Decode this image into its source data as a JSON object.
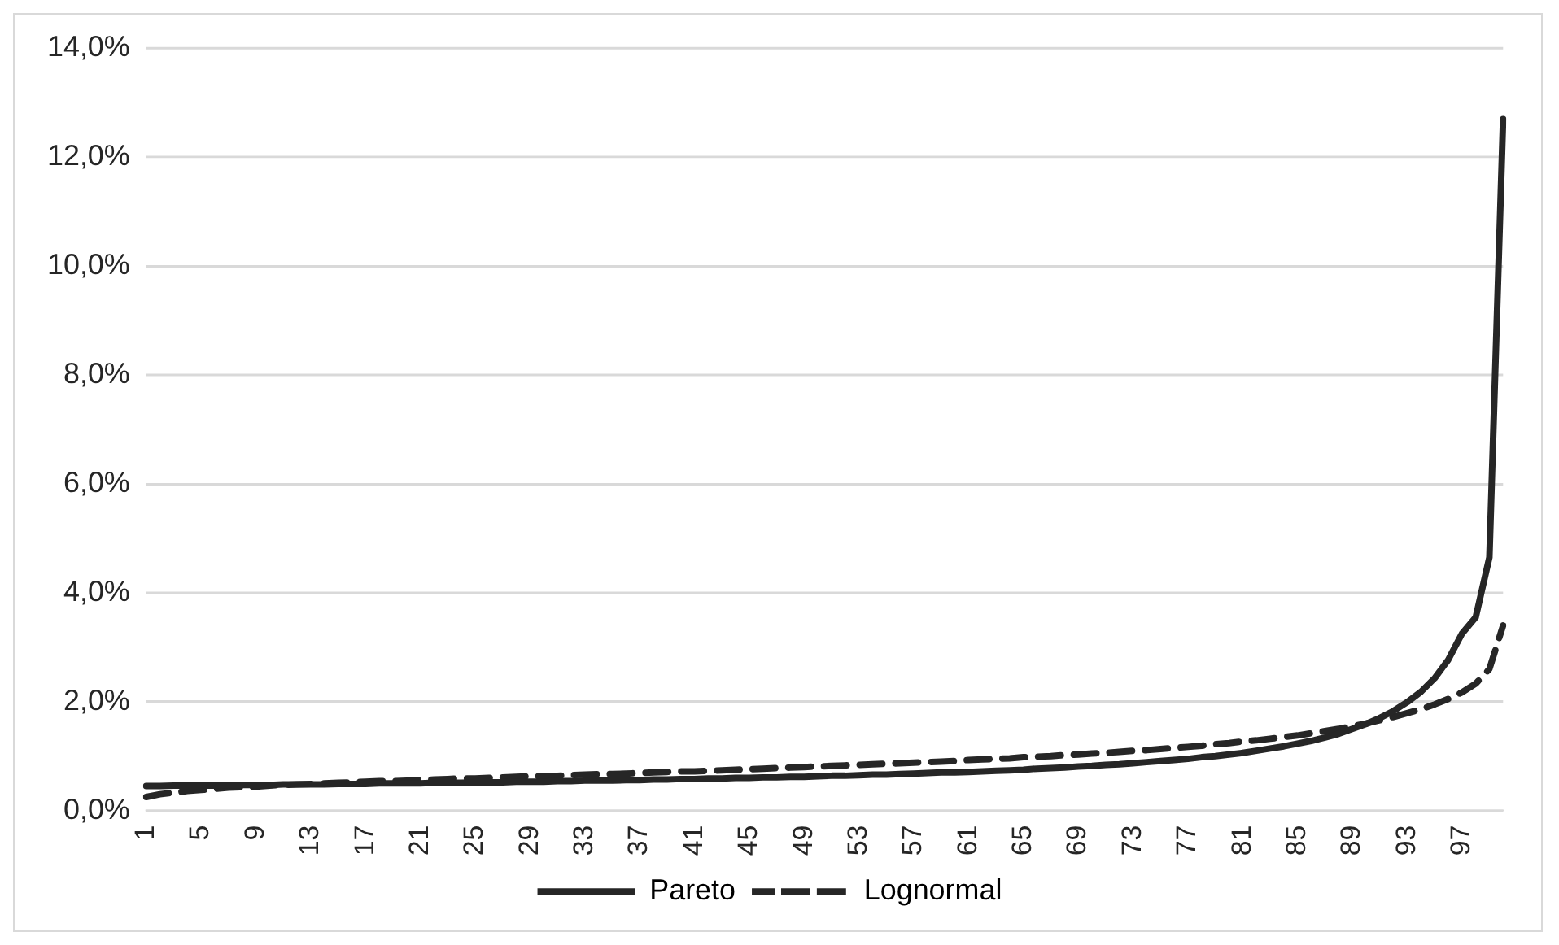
{
  "chart_data": {
    "type": "line",
    "categories": [
      "1",
      null,
      null,
      null,
      "5",
      null,
      null,
      null,
      "9",
      null,
      null,
      null,
      "13",
      null,
      null,
      null,
      "17",
      null,
      null,
      null,
      "21",
      null,
      null,
      null,
      "25",
      null,
      null,
      null,
      "29",
      null,
      null,
      null,
      "33",
      null,
      null,
      null,
      "37",
      null,
      null,
      null,
      "41",
      null,
      null,
      null,
      "45",
      null,
      null,
      null,
      "49",
      null,
      null,
      null,
      "53",
      null,
      null,
      null,
      "57",
      null,
      null,
      null,
      "61",
      null,
      null,
      null,
      "65",
      null,
      null,
      null,
      "69",
      null,
      null,
      null,
      "73",
      null,
      null,
      null,
      "77",
      null,
      null,
      null,
      "81",
      null,
      null,
      null,
      "85",
      null,
      null,
      null,
      "89",
      null,
      null,
      null,
      "93",
      null,
      null,
      null,
      "97",
      null,
      null,
      null
    ],
    "series": [
      {
        "name": "Pareto",
        "color": "#262626",
        "line_style": "solid",
        "values": [
          0.45,
          0.45,
          0.46,
          0.46,
          0.46,
          0.46,
          0.47,
          0.47,
          0.47,
          0.47,
          0.48,
          0.48,
          0.48,
          0.48,
          0.49,
          0.49,
          0.49,
          0.5,
          0.5,
          0.5,
          0.5,
          0.51,
          0.51,
          0.51,
          0.52,
          0.52,
          0.52,
          0.53,
          0.53,
          0.53,
          0.54,
          0.54,
          0.55,
          0.55,
          0.55,
          0.56,
          0.56,
          0.57,
          0.57,
          0.58,
          0.58,
          0.59,
          0.59,
          0.6,
          0.6,
          0.61,
          0.61,
          0.62,
          0.62,
          0.63,
          0.64,
          0.64,
          0.65,
          0.66,
          0.66,
          0.67,
          0.68,
          0.69,
          0.7,
          0.7,
          0.71,
          0.72,
          0.73,
          0.74,
          0.75,
          0.77,
          0.78,
          0.79,
          0.81,
          0.82,
          0.84,
          0.85,
          0.87,
          0.89,
          0.91,
          0.93,
          0.95,
          0.98,
          1.0,
          1.03,
          1.06,
          1.1,
          1.14,
          1.18,
          1.23,
          1.28,
          1.34,
          1.41,
          1.5,
          1.59,
          1.7,
          1.83,
          1.99,
          2.18,
          2.43,
          2.77,
          3.25,
          3.55,
          4.65,
          12.7
        ]
      },
      {
        "name": "Lognormal",
        "color": "#262626",
        "line_style": "dashed",
        "values": [
          0.25,
          0.3,
          0.33,
          0.36,
          0.38,
          0.4,
          0.42,
          0.43,
          0.44,
          0.46,
          0.47,
          0.48,
          0.49,
          0.5,
          0.51,
          0.52,
          0.53,
          0.54,
          0.54,
          0.55,
          0.56,
          0.57,
          0.58,
          0.59,
          0.59,
          0.6,
          0.61,
          0.62,
          0.63,
          0.63,
          0.64,
          0.65,
          0.66,
          0.67,
          0.67,
          0.68,
          0.69,
          0.7,
          0.71,
          0.72,
          0.72,
          0.73,
          0.74,
          0.75,
          0.76,
          0.77,
          0.78,
          0.79,
          0.8,
          0.81,
          0.82,
          0.83,
          0.84,
          0.85,
          0.86,
          0.87,
          0.88,
          0.89,
          0.9,
          0.91,
          0.93,
          0.94,
          0.95,
          0.96,
          0.98,
          0.99,
          1.0,
          1.02,
          1.03,
          1.05,
          1.06,
          1.08,
          1.1,
          1.11,
          1.13,
          1.15,
          1.17,
          1.19,
          1.22,
          1.24,
          1.27,
          1.29,
          1.32,
          1.35,
          1.38,
          1.42,
          1.46,
          1.5,
          1.55,
          1.6,
          1.66,
          1.72,
          1.79,
          1.86,
          1.95,
          2.05,
          2.17,
          2.33,
          2.6,
          3.4
        ]
      }
    ],
    "ylim": [
      0,
      14
    ],
    "yticks": [
      {
        "value": 0,
        "label": "0,0%"
      },
      {
        "value": 2,
        "label": "2,0%"
      },
      {
        "value": 4,
        "label": "4,0%"
      },
      {
        "value": 6,
        "label": "6,0%"
      },
      {
        "value": 8,
        "label": "8,0%"
      },
      {
        "value": 10,
        "label": "10,0%"
      },
      {
        "value": 12,
        "label": "12,0%"
      },
      {
        "value": 14,
        "label": "14,0%"
      }
    ],
    "grid": "y",
    "legend": "bottom",
    "marker": "none"
  }
}
